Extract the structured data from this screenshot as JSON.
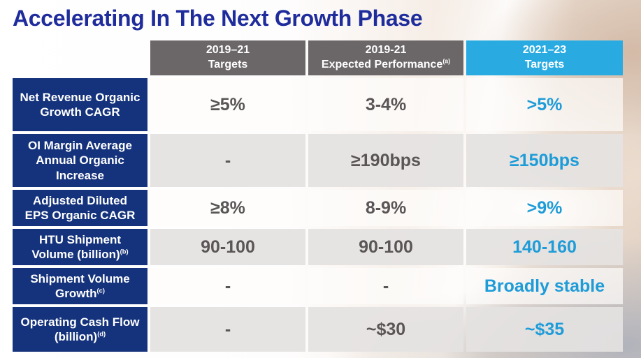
{
  "slide": {
    "title": "Accelerating In The Next Growth Phase"
  },
  "table": {
    "column_headers": [
      {
        "line1": "2019–21",
        "line2": "Targets",
        "sup": ""
      },
      {
        "line1": "2019-21",
        "line2": "Expected Performance",
        "sup": "(a)"
      },
      {
        "line1": "2021–23",
        "line2": "Targets",
        "sup": ""
      }
    ],
    "rows": [
      {
        "metric": "Net Revenue Organic Growth CAGR",
        "sup": "",
        "targets_2019_21": "≥5%",
        "expected_2019_21": "3-4%",
        "targets_2021_23": ">5%"
      },
      {
        "metric": "OI Margin Average Annual Organic Increase",
        "sup": "",
        "targets_2019_21": "-",
        "expected_2019_21": "≥190bps",
        "targets_2021_23": "≥150bps"
      },
      {
        "metric": "Adjusted Diluted EPS Organic CAGR",
        "sup": "",
        "targets_2019_21": "≥8%",
        "expected_2019_21": "8-9%",
        "targets_2021_23": ">9%"
      },
      {
        "metric": "HTU Shipment Volume (billion)",
        "sup": "(b)",
        "targets_2019_21": "90-100",
        "expected_2019_21": "90-100",
        "targets_2021_23": "140-160"
      },
      {
        "metric": "Shipment Volume Growth",
        "sup": "(c)",
        "targets_2019_21": "-",
        "expected_2019_21": "-",
        "targets_2021_23": "Broadly stable"
      },
      {
        "metric": "Operating Cash Flow (billion)",
        "sup": "(d)",
        "targets_2019_21": "-",
        "expected_2019_21": "~$30",
        "targets_2021_23": "~$35"
      }
    ]
  },
  "colors": {
    "title_blue": "#1F2C9C",
    "label_navy": "#15337C",
    "header_gray": "#6B6667",
    "accent_cyan": "#29ABE2",
    "value_gray": "#5A5556",
    "value_cyan": "#1E9CD8"
  }
}
